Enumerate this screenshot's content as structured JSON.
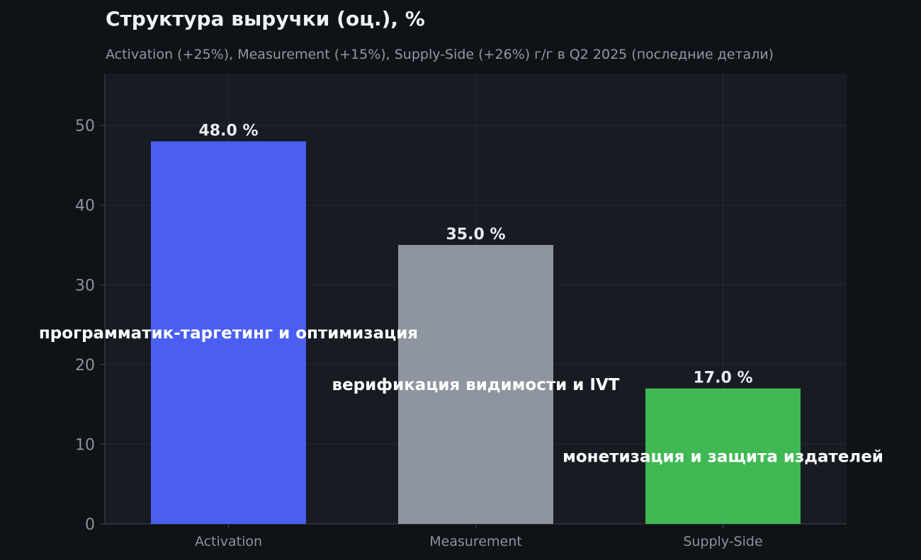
{
  "chart_data": {
    "type": "bar",
    "title": "Структура выручки (оц.), %",
    "subtitle": "Activation (+25%), Measurement (+15%), Supply-Side (+26%) г/г в Q2 2025 (последние детали)",
    "categories": [
      "Activation",
      "Measurement",
      "Supply-Side"
    ],
    "values": [
      48.0,
      35.0,
      17.0
    ],
    "value_labels": [
      "48.0 %",
      "35.0 %",
      "17.0 %"
    ],
    "annotations": [
      "программатик-таргетинг и оптимизация",
      "верификация видимости и IVT",
      "монетизация и защита издателей"
    ],
    "bar_colors": [
      "#4a5ff2",
      "#8e959f",
      "#40b853"
    ],
    "xlabel": "",
    "ylabel": "",
    "ylim": [
      0,
      56.5
    ],
    "yticks": [
      0,
      10,
      20,
      30,
      40,
      50
    ],
    "grid": true,
    "legend": "none"
  },
  "colors": {
    "page_background": "#0f1317",
    "plot_background": "#171b22",
    "grid": "#252a32",
    "axis": "#3a404a",
    "tick_text": "#8d939d",
    "value_label_text": "#e8ebf0",
    "annotation_text": "#ffffff"
  }
}
